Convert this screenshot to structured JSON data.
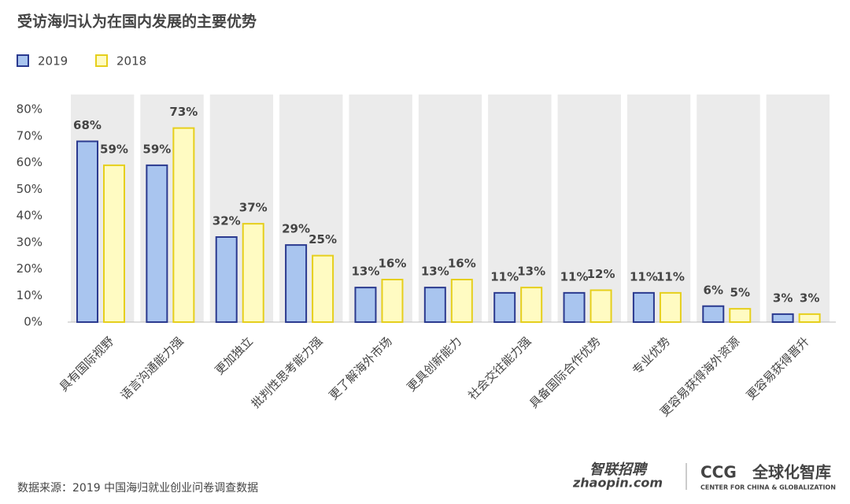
{
  "chart_data": {
    "type": "bar",
    "title": "受访海归认为在国内发展的主要优势",
    "categories": [
      "具有国际视野",
      "语言沟通能力强",
      "更加独立",
      "批判性思考能力强",
      "更了解海外市场",
      "更具创新能力",
      "社会交往能力强",
      "具备国际合作优势",
      "专业优势",
      "更容易获得海外资源",
      "更容易获得晋升"
    ],
    "series": [
      {
        "name": "2019",
        "color": "#a9c5ef",
        "stroke": "#2b3a8f",
        "values": [
          68,
          59,
          32,
          29,
          13,
          13,
          11,
          11,
          11,
          6,
          3
        ],
        "value_labels": [
          "68%",
          "59%",
          "32%",
          "29%",
          "13%",
          "13%",
          "11%",
          "11%",
          "11%",
          "6%",
          "3%"
        ]
      },
      {
        "name": "2018",
        "color": "#fffbc2",
        "stroke": "#e6cf1c",
        "values": [
          59,
          73,
          37,
          25,
          16,
          16,
          13,
          12,
          11,
          5,
          3
        ],
        "value_labels": [
          "59%",
          "73%",
          "37%",
          "25%",
          "16%",
          "16%",
          "13%",
          "12%",
          "11%",
          "5%",
          "3%"
        ]
      }
    ],
    "ylim": [
      0,
      80
    ],
    "yticks": [
      {
        "value": 0,
        "label": "0%"
      },
      {
        "value": 10,
        "label": "10%"
      },
      {
        "value": 20,
        "label": "20%"
      },
      {
        "value": 30,
        "label": "30%"
      },
      {
        "value": 40,
        "label": "40%"
      },
      {
        "value": 50,
        "label": "50%"
      },
      {
        "value": 60,
        "label": "60%"
      },
      {
        "value": 70,
        "label": "70%"
      },
      {
        "value": 80,
        "label": "80%"
      }
    ],
    "legend": "top-left"
  },
  "footer": {
    "source": "数据来源：2019 中国海归就业创业问卷调查数据",
    "logo1_cn": "智联招聘",
    "logo1_en": "zhaopin.com",
    "logo2_short": "CCG",
    "logo2_cn": "全球化智库",
    "logo2_en": "CENTER FOR CHINA & GLOBALIZATION"
  }
}
